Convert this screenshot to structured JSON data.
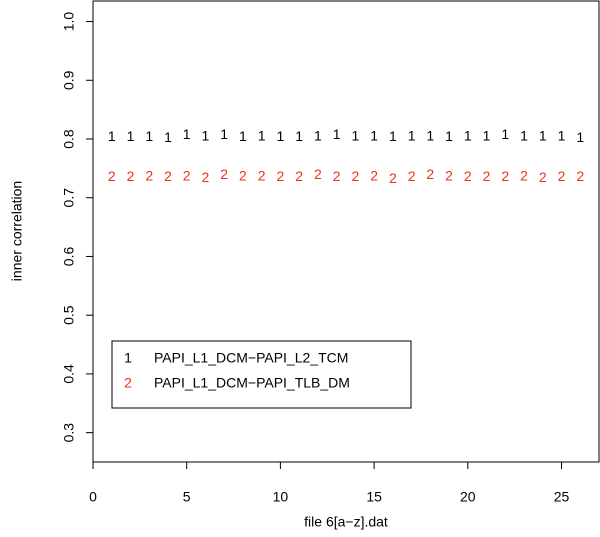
{
  "chart_data": {
    "type": "scatter",
    "xlabel": "file 6[a−z].dat",
    "ylabel": "inner correlation",
    "xlim": [
      0,
      27
    ],
    "ylim": [
      0.25,
      1.035
    ],
    "xticks": [
      0,
      5,
      10,
      15,
      20,
      25
    ],
    "yticks": [
      0.3,
      0.4,
      0.5,
      0.6,
      0.7,
      0.8,
      0.9,
      {
        "value": 1,
        "label": "1.0"
      }
    ],
    "legend": "bottom-left",
    "x": [
      1,
      2,
      3,
      4,
      5,
      6,
      7,
      8,
      9,
      10,
      11,
      12,
      13,
      14,
      15,
      16,
      17,
      18,
      19,
      20,
      21,
      22,
      23,
      24,
      25,
      26
    ],
    "series": [
      {
        "name": "PAPI_L1_DCM−PAPI_L2_TCM",
        "marker": "1",
        "color": "#000000",
        "values": [
          0.8025,
          0.8025,
          0.8025,
          0.801,
          0.806,
          0.804,
          0.806,
          0.8025,
          0.804,
          0.8025,
          0.8025,
          0.804,
          0.806,
          0.804,
          0.804,
          0.8025,
          0.804,
          0.804,
          0.8025,
          0.804,
          0.804,
          0.806,
          0.804,
          0.804,
          0.804,
          0.801
        ]
      },
      {
        "name": "PAPI_L1_DCM−PAPI_TLB_DM",
        "marker": "2",
        "color": "#e8321f",
        "values": [
          0.735,
          0.735,
          0.736,
          0.735,
          0.736,
          0.733,
          0.738,
          0.736,
          0.736,
          0.735,
          0.735,
          0.738,
          0.735,
          0.735,
          0.736,
          0.731,
          0.735,
          0.738,
          0.736,
          0.735,
          0.735,
          0.735,
          0.736,
          0.733,
          0.735,
          0.735
        ]
      }
    ]
  }
}
